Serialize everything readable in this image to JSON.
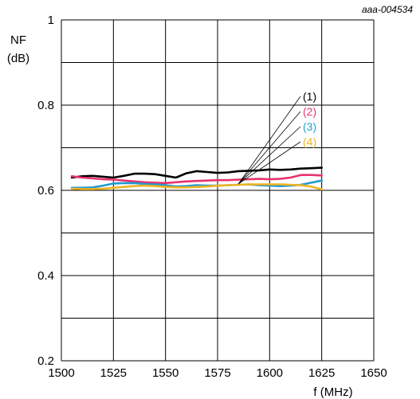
{
  "figure_id": "aaa-004534",
  "chart_data": {
    "type": "line",
    "ylabel_line1": "NF",
    "ylabel_line2": "(dB)",
    "xlabel": "f (MHz)",
    "xlim": [
      1500,
      1650
    ],
    "ylim": [
      0.2,
      1.0
    ],
    "xticks": [
      1500,
      1525,
      1550,
      1575,
      1600,
      1625,
      1650
    ],
    "xtick_labels": [
      "1500",
      "1525",
      "1550",
      "1575",
      "1600",
      "1625",
      "1650"
    ],
    "yticks": [
      0.2,
      0.4,
      0.6,
      0.8,
      1.0
    ],
    "ytick_labels": [
      "0.2",
      "0.4",
      "0.6",
      "0.8",
      "1"
    ],
    "grid": true,
    "series": [
      {
        "name": "(1)",
        "color": "#000000",
        "x": [
          1505,
          1510,
          1515,
          1520,
          1525,
          1530,
          1535,
          1540,
          1545,
          1550,
          1555,
          1560,
          1565,
          1570,
          1575,
          1580,
          1585,
          1590,
          1595,
          1600,
          1605,
          1610,
          1615,
          1620,
          1625
        ],
        "y": [
          0.63,
          0.633,
          0.634,
          0.632,
          0.63,
          0.634,
          0.639,
          0.639,
          0.638,
          0.634,
          0.63,
          0.64,
          0.645,
          0.643,
          0.641,
          0.642,
          0.645,
          0.646,
          0.647,
          0.649,
          0.648,
          0.649,
          0.651,
          0.652,
          0.653
        ]
      },
      {
        "name": "(2)",
        "color": "#e8336e",
        "x": [
          1505,
          1510,
          1515,
          1520,
          1525,
          1530,
          1535,
          1540,
          1545,
          1550,
          1555,
          1560,
          1565,
          1570,
          1575,
          1580,
          1585,
          1590,
          1595,
          1600,
          1605,
          1610,
          1615,
          1620,
          1625
        ],
        "y": [
          0.633,
          0.63,
          0.628,
          0.626,
          0.625,
          0.623,
          0.621,
          0.619,
          0.618,
          0.617,
          0.619,
          0.621,
          0.622,
          0.623,
          0.624,
          0.624,
          0.625,
          0.626,
          0.627,
          0.626,
          0.627,
          0.63,
          0.636,
          0.636,
          0.635
        ]
      },
      {
        "name": "(3)",
        "color": "#1f9bd1",
        "x": [
          1505,
          1510,
          1515,
          1520,
          1525,
          1530,
          1535,
          1540,
          1545,
          1550,
          1555,
          1560,
          1565,
          1570,
          1575,
          1580,
          1585,
          1590,
          1595,
          1600,
          1605,
          1610,
          1615,
          1620,
          1625
        ],
        "y": [
          0.606,
          0.606,
          0.607,
          0.611,
          0.616,
          0.617,
          0.617,
          0.615,
          0.614,
          0.612,
          0.609,
          0.61,
          0.612,
          0.611,
          0.611,
          0.612,
          0.613,
          0.614,
          0.612,
          0.611,
          0.61,
          0.611,
          0.613,
          0.618,
          0.623
        ]
      },
      {
        "name": "(4)",
        "color": "#f0b323",
        "x": [
          1505,
          1510,
          1515,
          1520,
          1525,
          1530,
          1535,
          1540,
          1545,
          1550,
          1555,
          1560,
          1565,
          1570,
          1575,
          1580,
          1585,
          1590,
          1595,
          1600,
          1605,
          1610,
          1615,
          1620,
          1625
        ],
        "y": [
          0.604,
          0.603,
          0.603,
          0.604,
          0.606,
          0.608,
          0.61,
          0.611,
          0.61,
          0.608,
          0.607,
          0.607,
          0.608,
          0.609,
          0.611,
          0.612,
          0.613,
          0.614,
          0.614,
          0.614,
          0.614,
          0.613,
          0.612,
          0.609,
          0.602
        ]
      }
    ],
    "legend_anchor": {
      "x": 1585,
      "y": 0.615
    }
  }
}
